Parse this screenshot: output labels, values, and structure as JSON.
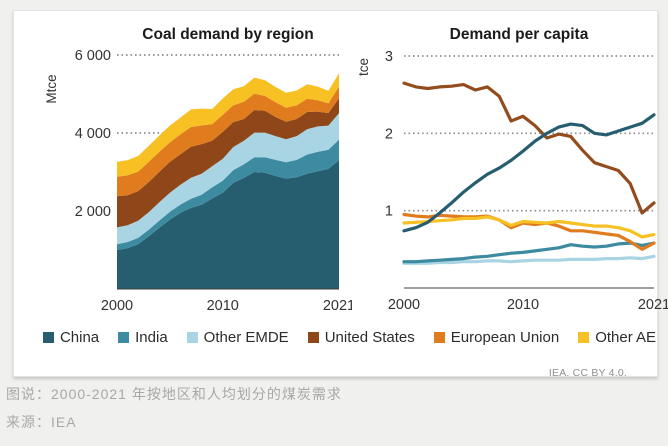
{
  "page": {
    "background": "#f0f1ef",
    "card_background": "#ffffff",
    "attribution": "IEA. CC BY 4.0.",
    "caption_line1": "图说：2000-2021 年按地区和人均划分的煤炭需求",
    "caption_line2": "来源：IEA"
  },
  "colors": {
    "china": "#265e70",
    "india": "#3d8ba1",
    "other_emde": "#a8d4e4",
    "united_states": "#934c1d",
    "european_union": "#e07b1e",
    "other_ae": "#f7c123",
    "gridline": "#8f8f8f",
    "axis": "#3c3c3c",
    "tick_text": "#333333"
  },
  "legend": [
    {
      "label": "China",
      "color": "#265e70"
    },
    {
      "label": "India",
      "color": "#3d8ba1"
    },
    {
      "label": "Other EMDE",
      "color": "#a8d4e4"
    },
    {
      "label": "United States",
      "color": "#8f4719"
    },
    {
      "label": "European Union",
      "color": "#e07b1e"
    },
    {
      "label": "Other AE",
      "color": "#f7c123"
    }
  ],
  "chart_data": [
    {
      "type": "area",
      "stacked": true,
      "title": "Coal demand by region",
      "ylabel": "Mtce",
      "xlabel": "",
      "x_range": [
        2000,
        2021
      ],
      "ylim": [
        0,
        6000
      ],
      "grid": "dotted-horizontal",
      "xticks": [
        {
          "x": 2000,
          "label": "2000"
        },
        {
          "x": 2010,
          "label": "2010"
        },
        {
          "x": 2021,
          "label": "2021"
        }
      ],
      "yticks": [
        {
          "v": 2000,
          "label": "2 000"
        },
        {
          "v": 4000,
          "label": "4 000"
        },
        {
          "v": 6000,
          "label": "6 000"
        }
      ],
      "years": [
        2000,
        2001,
        2002,
        2003,
        2004,
        2005,
        2006,
        2007,
        2008,
        2009,
        2010,
        2011,
        2012,
        2013,
        2014,
        2015,
        2016,
        2017,
        2018,
        2019,
        2020,
        2021
      ],
      "series": [
        {
          "name": "China",
          "color": "#265e70",
          "values": [
            1000,
            1050,
            1150,
            1350,
            1570,
            1780,
            1950,
            2080,
            2160,
            2320,
            2470,
            2720,
            2850,
            3000,
            2980,
            2900,
            2830,
            2870,
            2960,
            3020,
            3080,
            3300
          ]
        },
        {
          "name": "India",
          "color": "#3d8ba1",
          "values": [
            150,
            155,
            160,
            170,
            185,
            200,
            215,
            235,
            255,
            285,
            305,
            330,
            350,
            380,
            400,
            410,
            420,
            440,
            490,
            500,
            490,
            530
          ]
        },
        {
          "name": "Other EMDE",
          "color": "#a8d4e4",
          "values": [
            430,
            430,
            440,
            450,
            470,
            490,
            510,
            540,
            540,
            540,
            560,
            590,
            600,
            630,
            630,
            610,
            590,
            610,
            650,
            650,
            620,
            680
          ]
        },
        {
          "name": "United States",
          "color": "#8f4719",
          "values": [
            800,
            770,
            760,
            770,
            780,
            790,
            780,
            790,
            760,
            660,
            690,
            640,
            560,
            580,
            560,
            490,
            450,
            440,
            440,
            380,
            320,
            380
          ]
        },
        {
          "name": "European Union",
          "color": "#e07b1e",
          "values": [
            500,
            510,
            500,
            520,
            510,
            500,
            510,
            510,
            480,
            420,
            440,
            430,
            440,
            420,
            380,
            380,
            360,
            350,
            340,
            290,
            250,
            300
          ]
        },
        {
          "name": "Other AE",
          "color": "#f7c123",
          "values": [
            380,
            390,
            400,
            410,
            420,
            430,
            430,
            450,
            430,
            390,
            420,
            410,
            400,
            410,
            400,
            390,
            380,
            380,
            370,
            350,
            320,
            340
          ]
        }
      ]
    },
    {
      "type": "line",
      "title": "Demand per capita",
      "ylabel": "tce",
      "xlabel": "",
      "x_range": [
        2000,
        2021
      ],
      "ylim": [
        0,
        3
      ],
      "grid": "dotted-horizontal",
      "xticks": [
        {
          "x": 2000,
          "label": "2000"
        },
        {
          "x": 2010,
          "label": "2010"
        },
        {
          "x": 2021,
          "label": "2021"
        }
      ],
      "yticks": [
        {
          "v": 1,
          "label": "1"
        },
        {
          "v": 2,
          "label": "2"
        },
        {
          "v": 3,
          "label": "3"
        }
      ],
      "years": [
        2000,
        2001,
        2002,
        2003,
        2004,
        2005,
        2006,
        2007,
        2008,
        2009,
        2010,
        2011,
        2012,
        2013,
        2014,
        2015,
        2016,
        2017,
        2018,
        2019,
        2020,
        2021
      ],
      "series": [
        {
          "name": "Other EMDE",
          "color": "#a8d4e4",
          "values": [
            0.32,
            0.32,
            0.32,
            0.33,
            0.33,
            0.34,
            0.34,
            0.35,
            0.35,
            0.34,
            0.35,
            0.36,
            0.36,
            0.36,
            0.37,
            0.37,
            0.37,
            0.38,
            0.38,
            0.39,
            0.38,
            0.41
          ]
        },
        {
          "name": "India",
          "color": "#3d8ba1",
          "values": [
            0.34,
            0.34,
            0.35,
            0.36,
            0.37,
            0.38,
            0.4,
            0.41,
            0.43,
            0.45,
            0.46,
            0.48,
            0.5,
            0.52,
            0.56,
            0.54,
            0.53,
            0.54,
            0.57,
            0.58,
            0.55,
            0.58
          ]
        },
        {
          "name": "European Union",
          "color": "#e07b1e",
          "values": [
            0.95,
            0.93,
            0.92,
            0.94,
            0.93,
            0.92,
            0.92,
            0.93,
            0.88,
            0.78,
            0.84,
            0.82,
            0.84,
            0.8,
            0.74,
            0.74,
            0.72,
            0.7,
            0.68,
            0.6,
            0.5,
            0.58
          ]
        },
        {
          "name": "Other AE",
          "color": "#f7c123",
          "values": [
            0.84,
            0.85,
            0.86,
            0.87,
            0.88,
            0.9,
            0.9,
            0.92,
            0.88,
            0.81,
            0.86,
            0.85,
            0.84,
            0.86,
            0.84,
            0.82,
            0.8,
            0.8,
            0.78,
            0.74,
            0.66,
            0.69
          ]
        },
        {
          "name": "United States",
          "color": "#934c1d",
          "values": [
            2.65,
            2.6,
            2.58,
            2.6,
            2.61,
            2.63,
            2.56,
            2.6,
            2.48,
            2.16,
            2.22,
            2.1,
            1.94,
            1.99,
            1.96,
            1.78,
            1.62,
            1.57,
            1.52,
            1.35,
            0.97,
            1.1
          ]
        },
        {
          "name": "China",
          "color": "#265e70",
          "values": [
            0.74,
            0.78,
            0.85,
            0.97,
            1.1,
            1.24,
            1.36,
            1.47,
            1.55,
            1.65,
            1.77,
            1.9,
            2.0,
            2.08,
            2.12,
            2.1,
            2.0,
            1.98,
            2.03,
            2.08,
            2.13,
            2.24
          ]
        }
      ]
    }
  ]
}
